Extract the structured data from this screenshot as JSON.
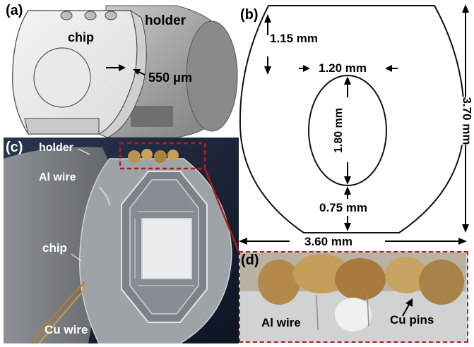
{
  "panels": {
    "a": {
      "label": "(a)",
      "chip_label": "chip",
      "holder_label": "holder",
      "thickness_label": "550 μm"
    },
    "b": {
      "label": "(b)",
      "top_gap": "1.15 mm",
      "hole_width": "1.20 mm",
      "hole_height": "1.80 mm",
      "bottom_gap": "0.75 mm",
      "total_height": "3.70 mm",
      "total_width": "3.60 mm"
    },
    "c": {
      "label": "(c)",
      "holder_label": "holder",
      "al_wire_label": "Al wire",
      "chip_label": "chip",
      "cu_wire_label": "Cu wire"
    },
    "d": {
      "label": "(d)",
      "al_wire_label": "Al wire",
      "cu_pins_label": "Cu pins"
    }
  },
  "colors": {
    "highlight_box": "#b01c1c",
    "photo_bg": "#1a2333",
    "chip_grey": "#a9aeb4"
  }
}
